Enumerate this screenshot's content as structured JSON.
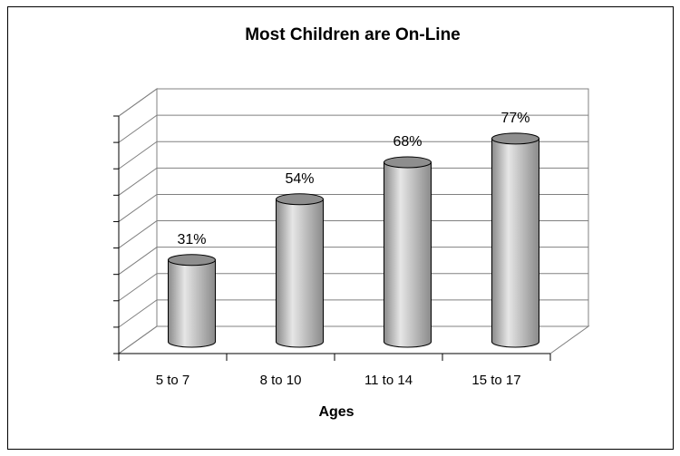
{
  "chart_data": {
    "type": "bar",
    "style": "3d-cylinder",
    "title": "Most Children are On-Line",
    "xlabel": "Ages",
    "ylabel": "",
    "categories": [
      "5 to 7",
      "8 to 10",
      "11 to 14",
      "15 to 17"
    ],
    "values": [
      31,
      54,
      68,
      77
    ],
    "data_labels": [
      "31%",
      "54%",
      "68%",
      "77%"
    ],
    "ylim": [
      0,
      90
    ],
    "y_gridlines": 9,
    "grid": true,
    "legend": "none",
    "colors": {
      "bar_fill": "#b4b4b4",
      "bar_highlight": "#e6e6e6",
      "bar_shadow": "#8a8a8a",
      "bar_top": "#8e8e8e",
      "gridline": "#808080",
      "axis": "#000000"
    }
  }
}
